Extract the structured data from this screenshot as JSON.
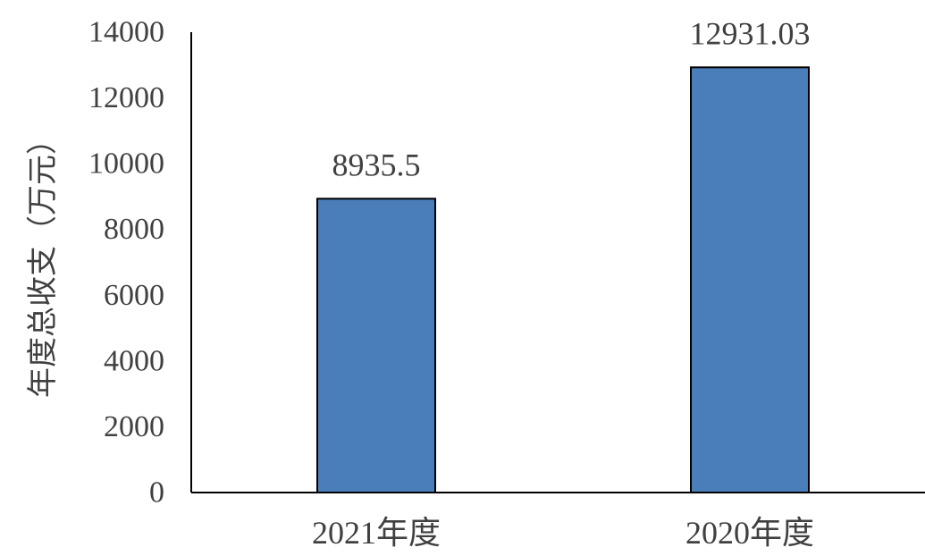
{
  "chart_data": {
    "type": "bar",
    "title": "",
    "xlabel": "",
    "ylabel": "年度总收支（万元）",
    "categories": [
      "2021年度",
      "2020年度"
    ],
    "values": [
      8935.5,
      12931.03
    ],
    "data_labels": [
      "8935.5",
      "12931.03"
    ],
    "ylim": [
      0,
      14000
    ],
    "yticks": [
      0,
      2000,
      4000,
      6000,
      8000,
      10000,
      12000,
      14000
    ],
    "ytick_labels": [
      "0",
      "2000",
      "4000",
      "6000",
      "8000",
      "10000",
      "12000",
      "14000"
    ],
    "grid": false,
    "legend": "none",
    "bar_color": "#4a7ebb",
    "bar_edge_color": "#000000"
  }
}
